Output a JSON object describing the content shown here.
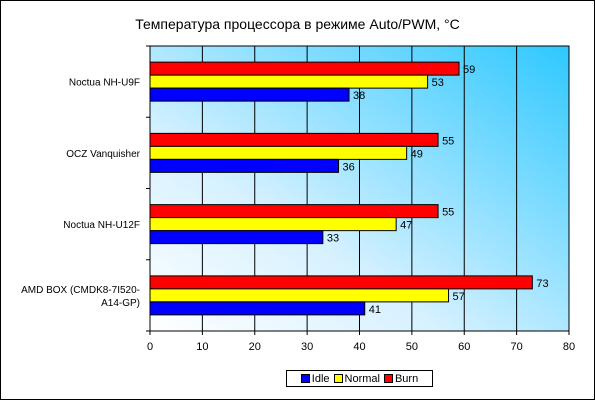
{
  "chart_data": {
    "type": "bar",
    "orientation": "horizontal",
    "title": "Температура процессора в режиме Auto/PWM, °C",
    "categories": [
      [
        "Noctua NH-U9F"
      ],
      [
        "OCZ Vanquisher"
      ],
      [
        "Noctua NH-U12F"
      ],
      [
        "AMD BOX (CMDK8-7I520-",
        "A14-GP)"
      ]
    ],
    "series": [
      {
        "name": "Burn",
        "color": "#ff0000",
        "values": [
          59,
          55,
          55,
          73
        ]
      },
      {
        "name": "Normal",
        "color": "#ffff00",
        "values": [
          53,
          49,
          47,
          57
        ]
      },
      {
        "name": "Idle",
        "color": "#0000ff",
        "values": [
          38,
          36,
          33,
          41
        ]
      }
    ],
    "xlim": [
      0,
      80
    ],
    "xticks": [
      0,
      10,
      20,
      30,
      40,
      50,
      60,
      70,
      80
    ],
    "legend": {
      "placement": "bottom",
      "entries": [
        {
          "name": "Idle",
          "color": "#0000ff"
        },
        {
          "name": "Normal",
          "color": "#ffff00"
        },
        {
          "name": "Burn",
          "color": "#ff0000"
        }
      ]
    },
    "grid": "vertical",
    "plot_background": [
      "#ffffff",
      "#2ec8ff"
    ]
  }
}
